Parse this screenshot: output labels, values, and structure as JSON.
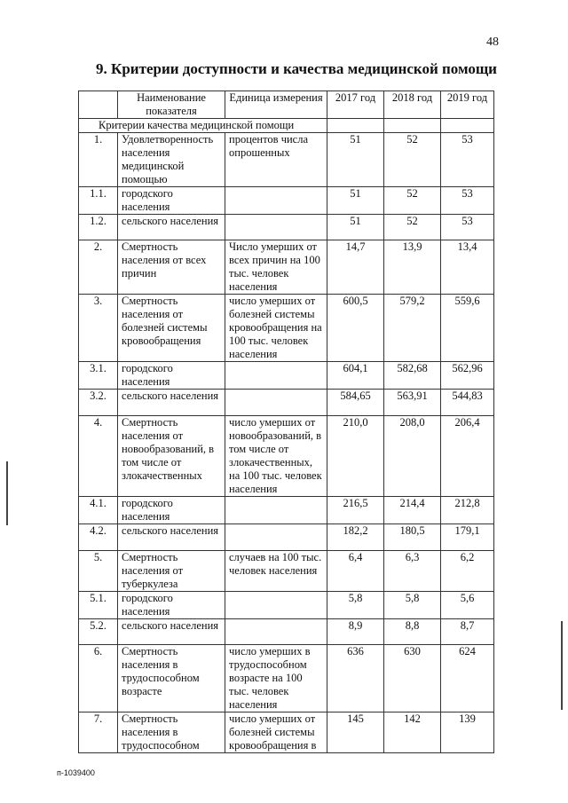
{
  "page_number": "48",
  "title": "9. Критерии доступности и качества медицинской помощи",
  "table": {
    "headers": [
      "",
      "Наименование показателя",
      "Единица измерения",
      "2017 год",
      "2018 год",
      "2019 год"
    ],
    "section": "Критерии качества медицинской помощи",
    "rows": [
      {
        "num": "1.",
        "name": "Удовлетворенность населения медицинской помощью",
        "unit": "процентов числа опрошенных",
        "y2017": "51",
        "y2018": "52",
        "y2019": "53"
      },
      {
        "num": "1.1.",
        "name": "городского населения",
        "unit": "",
        "y2017": "51",
        "y2018": "52",
        "y2019": "53"
      },
      {
        "num": "1.2.",
        "name": "сельского населения",
        "unit": "",
        "y2017": "51",
        "y2018": "52",
        "y2019": "53"
      },
      {
        "num": "2.",
        "name": "Смертность населения от всех причин",
        "unit": "Число умерших от всех причин на 100 тыс. человек населения",
        "y2017": "14,7",
        "y2018": "13,9",
        "y2019": "13,4"
      },
      {
        "num": "3.",
        "name": "Смертность населения от болезней системы кровообращения",
        "unit": "число умерших от болезней системы кровообращения на 100 тыс. человек населения",
        "y2017": "600,5",
        "y2018": "579,2",
        "y2019": "559,6"
      },
      {
        "num": "3.1.",
        "name": "городского населения",
        "unit": "",
        "y2017": "604,1",
        "y2018": "582,68",
        "y2019": "562,96"
      },
      {
        "num": "3.2.",
        "name": "сельского населения",
        "unit": "",
        "y2017": "584,65",
        "y2018": "563,91",
        "y2019": "544,83"
      },
      {
        "num": "4.",
        "name": "Смертность населения от новообразований, в том числе от злокачественных",
        "unit": "число умерших от новообразований, в том числе от злокачественных, на 100 тыс. человек населения",
        "y2017": "210,0",
        "y2018": "208,0",
        "y2019": "206,4"
      },
      {
        "num": "4.1.",
        "name": "городского населения",
        "unit": "",
        "y2017": "216,5",
        "y2018": "214,4",
        "y2019": "212,8"
      },
      {
        "num": "4.2.",
        "name": "сельского населения",
        "unit": "",
        "y2017": "182,2",
        "y2018": "180,5",
        "y2019": "179,1"
      },
      {
        "num": "5.",
        "name": "Смертность населения от туберкулеза",
        "unit": "случаев на 100 тыс. человек населения",
        "y2017": "6,4",
        "y2018": "6,3",
        "y2019": "6,2"
      },
      {
        "num": "5.1.",
        "name": "городского населения",
        "unit": "",
        "y2017": "5,8",
        "y2018": "5,8",
        "y2019": "5,6"
      },
      {
        "num": "5.2.",
        "name": "сельского населения",
        "unit": "",
        "y2017": "8,9",
        "y2018": "8,8",
        "y2019": "8,7"
      },
      {
        "num": "6.",
        "name": "Смертность населения в трудоспособном возрасте",
        "unit": "число умерших в трудоспособном возрасте на 100 тыс. человек населения",
        "y2017": "636",
        "y2018": "630",
        "y2019": "624"
      },
      {
        "num": "7.",
        "name": "Смертность населения в трудоспособном",
        "unit": "число умерших от болезней системы кровообращения в",
        "y2017": "145",
        "y2018": "142",
        "y2019": "139"
      }
    ]
  },
  "footer_code": "п-1039400"
}
